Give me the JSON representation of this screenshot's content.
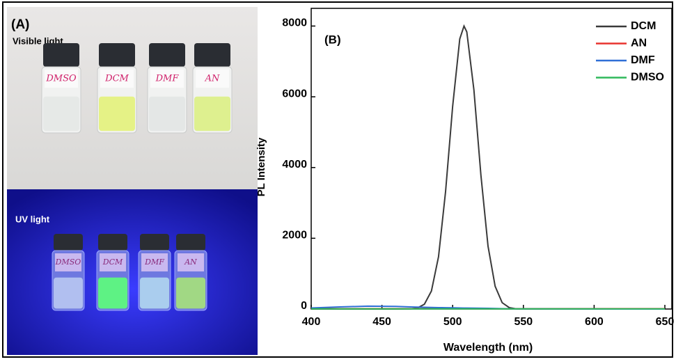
{
  "photo": {
    "label": "(A)",
    "top_caption": "Visible light",
    "bottom_caption": "UV light",
    "top_vials": [
      "DMSO",
      "DCM",
      "DMF",
      "AN"
    ],
    "bottom_vials": [
      "DMSO",
      "DCM",
      "DMF",
      "AN"
    ]
  },
  "chart_data": {
    "type": "line",
    "annotations": [
      "(B)"
    ],
    "x_label": "Wavelength (nm)",
    "y_label": "PL Intensity",
    "x": [
      400,
      420,
      440,
      460,
      470,
      475,
      480,
      485,
      490,
      495,
      500,
      505,
      508,
      510,
      515,
      520,
      525,
      530,
      535,
      540,
      545,
      550,
      560,
      580,
      600,
      620,
      640,
      650
    ],
    "series": [
      {
        "name": "DCM",
        "color": "#3a3a3a",
        "values": [
          0,
          0,
          0,
          0,
          4,
          28,
          135,
          509,
          1480,
          3318,
          5733,
          7634,
          8000,
          7834,
          6197,
          3779,
          1776,
          643,
          179,
          39,
          6,
          0,
          0,
          0,
          0,
          0,
          0,
          0
        ]
      },
      {
        "name": "AN",
        "color": "#e8332e",
        "values": [
          10,
          10,
          10,
          10,
          10,
          10,
          10,
          10,
          10,
          10,
          10,
          10,
          10,
          10,
          10,
          10,
          10,
          10,
          10,
          10,
          10,
          10,
          10,
          10,
          10,
          10,
          10,
          10
        ]
      },
      {
        "name": "DMF",
        "color": "#2f6fd6",
        "values": [
          30,
          60,
          80,
          75,
          60,
          55,
          50,
          45,
          40,
          38,
          35,
          30,
          28,
          27,
          25,
          22,
          20,
          15,
          10,
          8,
          6,
          5,
          3,
          2,
          1,
          0,
          0,
          0
        ]
      },
      {
        "name": "DMSO",
        "color": "#2fb85a",
        "values": [
          5,
          5,
          5,
          5,
          5,
          5,
          5,
          5,
          5,
          5,
          5,
          5,
          5,
          5,
          5,
          5,
          5,
          5,
          5,
          5,
          5,
          5,
          5,
          5,
          5,
          5,
          5,
          5
        ]
      }
    ],
    "xlim": [
      400,
      650
    ],
    "ylim": [
      0,
      8500
    ],
    "xticks": [
      400,
      450,
      500,
      550,
      600,
      650
    ],
    "yticks": [
      0,
      2000,
      4000,
      6000,
      8000
    ],
    "legend": "upper right"
  }
}
